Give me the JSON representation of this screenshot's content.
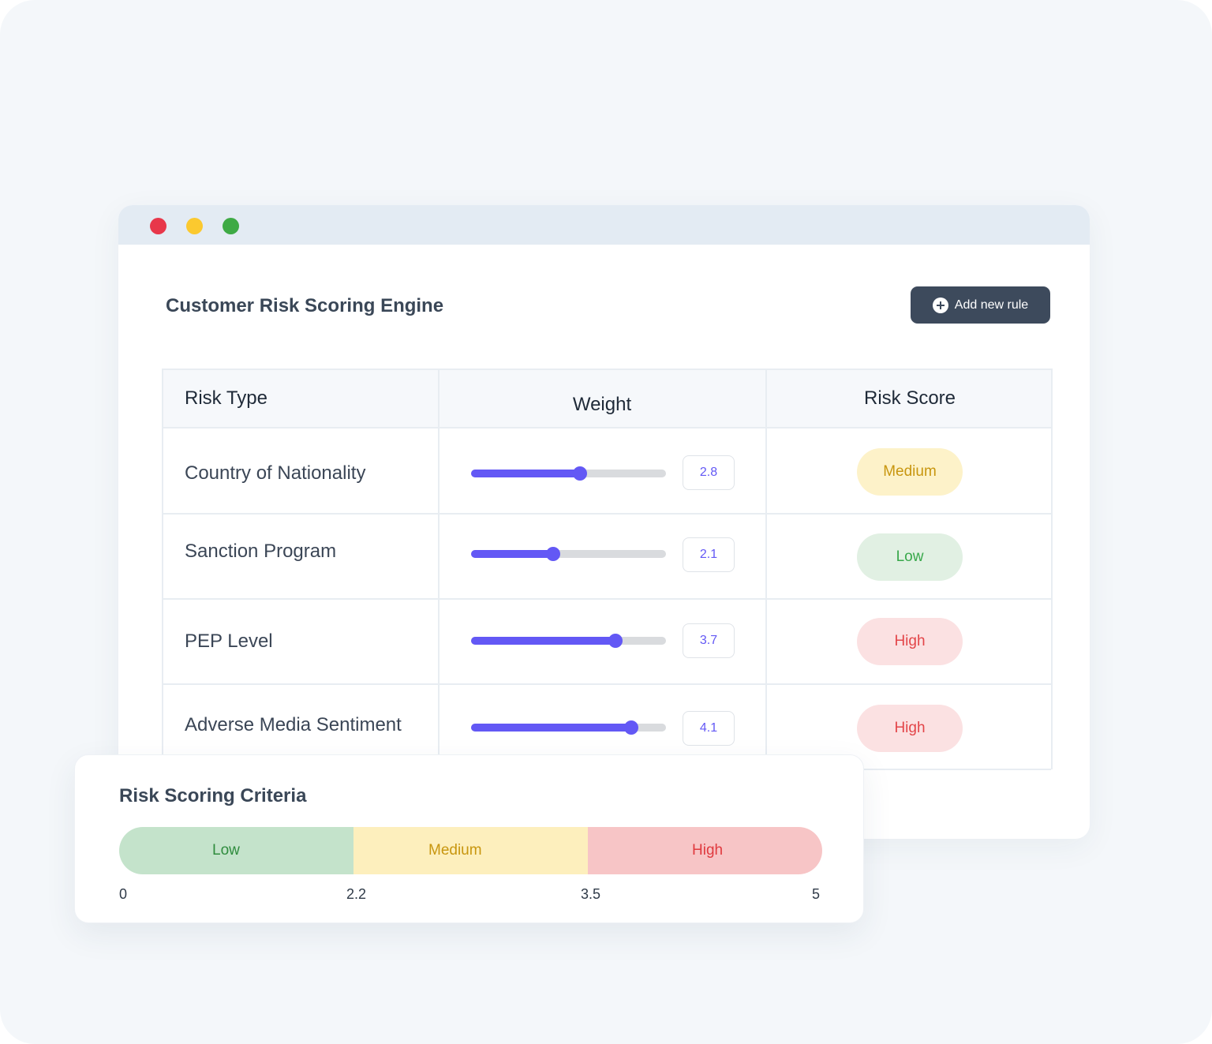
{
  "window": {
    "controls": [
      {
        "name": "close",
        "color": "#e8374a"
      },
      {
        "name": "minimize",
        "color": "#fbc92f"
      },
      {
        "name": "maximize",
        "color": "#3eaa45"
      }
    ]
  },
  "header": {
    "title": "Customer Risk Scoring Engine",
    "add_button_label": "Add new rule",
    "add_button_icon": "plus-circle-icon"
  },
  "table": {
    "columns": [
      "Risk Type",
      "Weight",
      "Risk Score"
    ],
    "slider_max": 5,
    "rows": [
      {
        "risk_type": "Country of Nationality",
        "weight": 2.8,
        "weight_label": "2.8",
        "score": "Medium",
        "score_level": "medium"
      },
      {
        "risk_type": "Sanction Program",
        "weight": 2.1,
        "weight_label": "2.1",
        "score": "Low",
        "score_level": "low"
      },
      {
        "risk_type": "PEP Level",
        "weight": 3.7,
        "weight_label": "3.7",
        "score": "High",
        "score_level": "high"
      },
      {
        "risk_type": "Adverse Media Sentiment",
        "weight": 4.1,
        "weight_label": "4.1",
        "score": "High",
        "score_level": "high"
      }
    ]
  },
  "criteria": {
    "title": "Risk Scoring Criteria",
    "segments": [
      {
        "label": "Low",
        "from": 0,
        "to": 2.2,
        "level": "low"
      },
      {
        "label": "Medium",
        "from": 2.2,
        "to": 3.5,
        "level": "medium"
      },
      {
        "label": "High",
        "from": 3.5,
        "to": 5,
        "level": "high"
      }
    ],
    "ticks": [
      "0",
      "2.2",
      "3.5",
      "5"
    ]
  },
  "colors": {
    "accent": "#6358f5",
    "button_bg": "#3d4a5c",
    "low": "#38a84b",
    "medium": "#c8960f",
    "high": "#e34549"
  }
}
